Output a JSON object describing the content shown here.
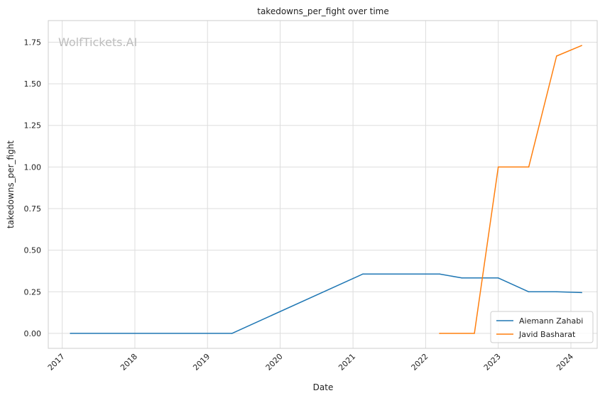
{
  "chart_data": {
    "type": "line",
    "title": "takedowns_per_fight over time",
    "xlabel": "Date",
    "ylabel": "takedowns_per_fight",
    "watermark": "WolfTickets.AI",
    "x_ticks": [
      "2017",
      "2018",
      "2019",
      "2020",
      "2021",
      "2022",
      "2023",
      "2024"
    ],
    "y_ticks": [
      "0.00",
      "0.25",
      "0.50",
      "0.75",
      "1.00",
      "1.25",
      "1.50",
      "1.75"
    ],
    "xlim": [
      "2016-10-23",
      "2024-05-12"
    ],
    "ylim": [
      -0.09,
      1.88
    ],
    "grid": true,
    "legend_position": "bottom-right",
    "series": [
      {
        "name": "Aiemann Zahabi",
        "color": "#1f77b4",
        "points": [
          {
            "x": "2017-02-11",
            "y": 0.0
          },
          {
            "x": "2019-05-04",
            "y": 0.0
          },
          {
            "x": "2021-02-20",
            "y": 0.357
          },
          {
            "x": "2022-03-12",
            "y": 0.357
          },
          {
            "x": "2022-07-02",
            "y": 0.333
          },
          {
            "x": "2023-01-01",
            "y": 0.333
          },
          {
            "x": "2023-06-03",
            "y": 0.25
          },
          {
            "x": "2023-10-21",
            "y": 0.25
          },
          {
            "x": "2024-02-24",
            "y": 0.245
          }
        ]
      },
      {
        "name": "Javid Basharat",
        "color": "#ff7f0e",
        "points": [
          {
            "x": "2022-03-12",
            "y": 0.0
          },
          {
            "x": "2022-09-03",
            "y": 0.0
          },
          {
            "x": "2023-01-01",
            "y": 1.0
          },
          {
            "x": "2023-06-03",
            "y": 1.0
          },
          {
            "x": "2023-10-21",
            "y": 1.667
          },
          {
            "x": "2024-02-24",
            "y": 1.73
          }
        ]
      }
    ]
  }
}
